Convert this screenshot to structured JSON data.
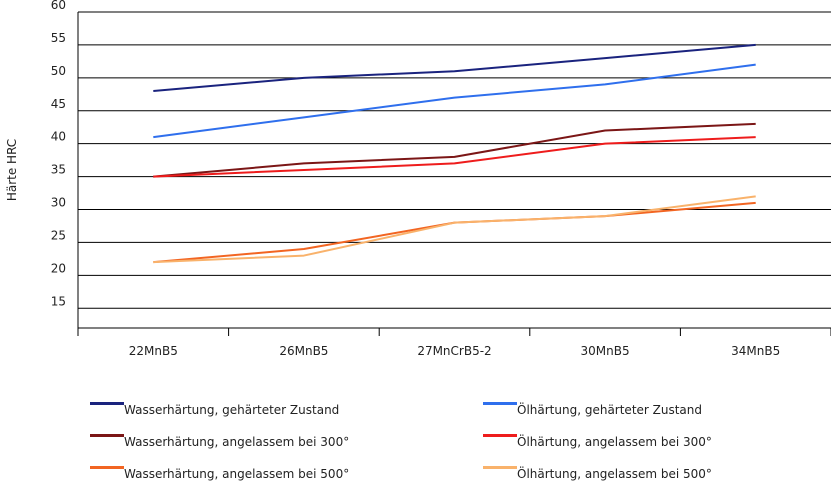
{
  "chart_data": {
    "type": "line",
    "title": "",
    "xlabel": "",
    "ylabel": "Härte HRC",
    "ylim": [
      12,
      60
    ],
    "yticks": [
      15,
      20,
      25,
      30,
      35,
      40,
      45,
      50,
      55,
      60
    ],
    "grid": "horizontal",
    "legend_position": "bottom",
    "categories": [
      "22MnB5",
      "26MnB5",
      "27MnCrB5-2",
      "30MnB5",
      "34MnB5"
    ],
    "series": [
      {
        "name": "Wasserhärtung, gehärteter Zustand",
        "color": "#1a237e",
        "values": [
          48,
          50,
          51,
          53,
          55
        ]
      },
      {
        "name": "Ölhärtung, gehärteter Zustand",
        "color": "#2f6fed",
        "values": [
          41,
          44,
          47,
          49,
          52
        ]
      },
      {
        "name": "Wasserhärtung, angelassem bei 300°",
        "color": "#7b1616",
        "values": [
          35,
          37,
          38,
          42,
          43
        ]
      },
      {
        "name": "Ölhärtung, angelassem bei 300°",
        "color": "#ee1c1c",
        "values": [
          35,
          36,
          37,
          40,
          41
        ]
      },
      {
        "name": "Wasserhärtung, angelassem bei 500°",
        "color": "#f26522",
        "values": [
          22,
          24,
          28,
          29,
          31
        ]
      },
      {
        "name": "Ölhärtung, angelassem bei 500°",
        "color": "#f9b26b",
        "values": [
          22,
          23,
          28,
          29,
          32
        ]
      }
    ]
  }
}
